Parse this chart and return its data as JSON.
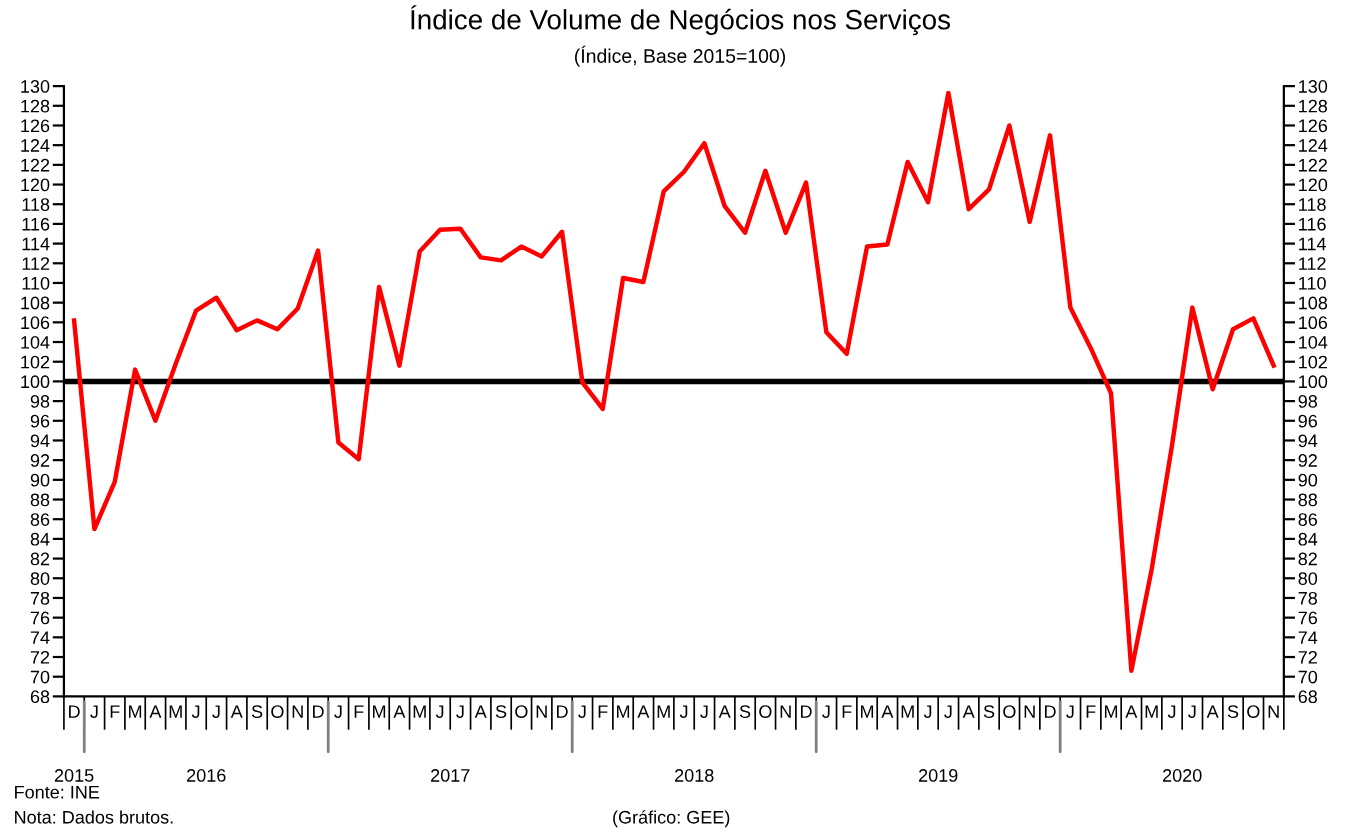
{
  "chart_data": {
    "type": "line",
    "title": "Índice de Volume de Negócios nos Serviços",
    "subtitle": "(Índice, Base 2015=100)",
    "categories": [
      "D",
      "J",
      "F",
      "M",
      "A",
      "M",
      "J",
      "J",
      "A",
      "S",
      "O",
      "N",
      "D",
      "J",
      "F",
      "M",
      "A",
      "M",
      "J",
      "J",
      "A",
      "S",
      "O",
      "N",
      "D",
      "J",
      "F",
      "M",
      "A",
      "M",
      "J",
      "J",
      "A",
      "S",
      "O",
      "N",
      "D",
      "J",
      "F",
      "M",
      "A",
      "M",
      "J",
      "J",
      "A",
      "S",
      "O",
      "N",
      "D",
      "J",
      "F",
      "M",
      "A",
      "M",
      "J",
      "J",
      "A",
      "S",
      "O",
      "N"
    ],
    "series": [
      {
        "color": "#ff0000",
        "values": [
          106.2,
          85,
          89.8,
          101.2,
          96,
          101.8,
          107.2,
          108.5,
          105.2,
          106.2,
          105.3,
          107.4,
          113.3,
          93.8,
          92.1,
          109.6,
          101.6,
          113.2,
          115.4,
          115.5,
          112.6,
          112.3,
          113.7,
          112.7,
          115.2,
          99.9,
          97.2,
          110.5,
          110.1,
          119.3,
          121.3,
          124.2,
          117.8,
          115.1,
          121.4,
          115.1,
          120.2,
          105,
          102.8,
          113.7,
          113.9,
          122.3,
          118.2,
          129.3,
          117.5,
          119.5,
          126,
          116.2,
          125,
          107.5,
          103.4,
          98.8,
          70.6,
          80.9,
          93.5,
          107.5,
          99.2,
          105.3,
          106.4,
          101.6
        ]
      }
    ],
    "ylim": [
      68,
      130
    ],
    "yticks": [
      68,
      70,
      72,
      74,
      76,
      78,
      80,
      82,
      84,
      86,
      88,
      90,
      92,
      94,
      96,
      98,
      100,
      102,
      104,
      106,
      108,
      110,
      112,
      114,
      116,
      118,
      120,
      122,
      124,
      126,
      128,
      130
    ],
    "y2lim": [
      68,
      130
    ],
    "y2ticks": [
      68,
      70,
      72,
      74,
      76,
      78,
      80,
      82,
      84,
      86,
      88,
      90,
      92,
      94,
      96,
      98,
      100,
      102,
      104,
      106,
      108,
      110,
      112,
      114,
      116,
      118,
      120,
      122,
      124,
      126,
      128,
      130
    ],
    "ref_lines": [
      {
        "axis": "y",
        "value": 100,
        "color": "#000000"
      }
    ],
    "grid": false,
    "legend": false,
    "marker": "none",
    "line_style": "solid",
    "annotations": [
      "2015",
      "2016",
      "2017",
      "2018",
      "2019",
      "2020",
      "Fonte: INE",
      "Nota: Dados brutos.",
      "(Gráfico: GEE)"
    ]
  }
}
